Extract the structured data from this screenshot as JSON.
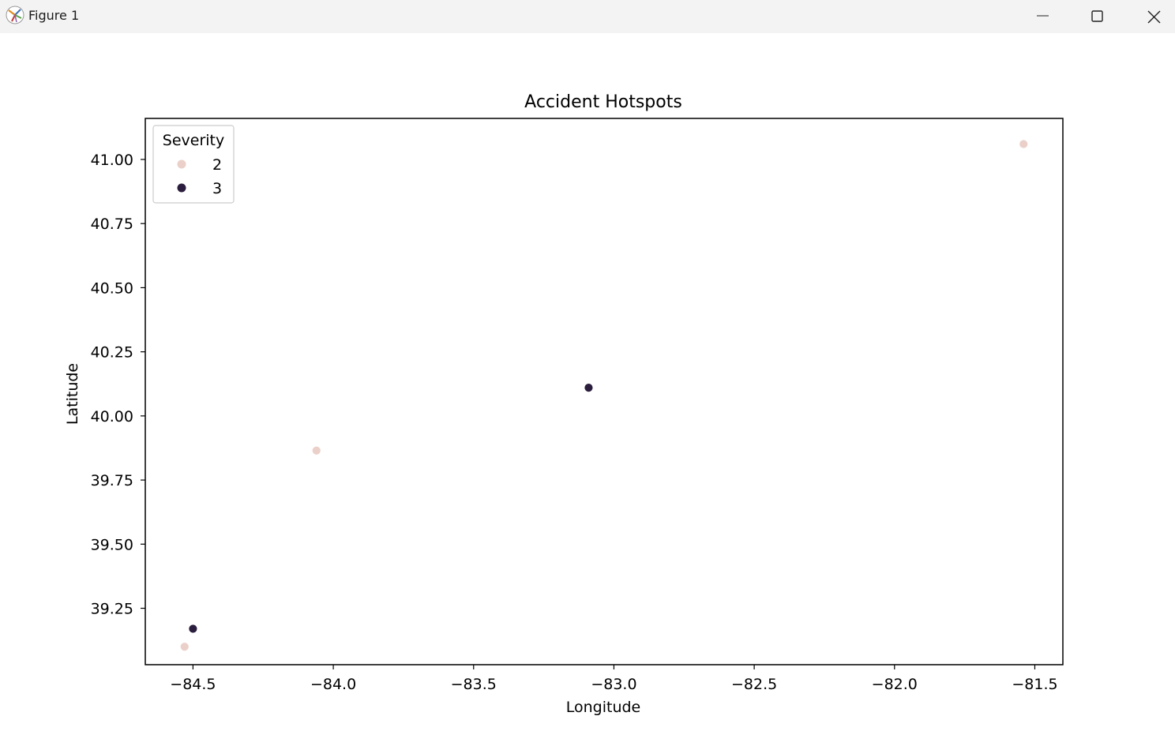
{
  "window": {
    "title": "Figure 1",
    "app_icon": "matplotlib-icon",
    "controls": [
      "minimize-icon",
      "maximize-icon",
      "close-icon"
    ]
  },
  "chart_data": {
    "type": "scatter",
    "title": "Accident Hotspots",
    "xlabel": "Longitude",
    "ylabel": "Latitude",
    "xlim": [
      -84.67,
      -81.4
    ],
    "ylim": [
      39.03,
      41.16
    ],
    "xticks": [
      -84.5,
      -84.0,
      -83.5,
      -83.0,
      -82.5,
      -82.0,
      -81.5
    ],
    "xtick_labels": [
      "−84.5",
      "−84.0",
      "−83.5",
      "−83.0",
      "−82.5",
      "−82.0",
      "−81.5"
    ],
    "yticks": [
      39.25,
      39.5,
      39.75,
      40.0,
      40.25,
      40.5,
      40.75,
      41.0
    ],
    "ytick_labels": [
      "39.25",
      "39.50",
      "39.75",
      "40.00",
      "40.25",
      "40.50",
      "40.75",
      "41.00"
    ],
    "grid": false,
    "legend": {
      "title": "Severity",
      "placement": "top-left"
    },
    "series": [
      {
        "name": "2",
        "color": "#ebd0c9",
        "x": [
          -84.53,
          -84.06,
          -81.54
        ],
        "y": [
          39.1,
          39.865,
          41.06
        ]
      },
      {
        "name": "3",
        "color": "#2b1d3d",
        "x": [
          -84.5,
          -83.09
        ],
        "y": [
          39.17,
          40.11
        ]
      }
    ]
  }
}
